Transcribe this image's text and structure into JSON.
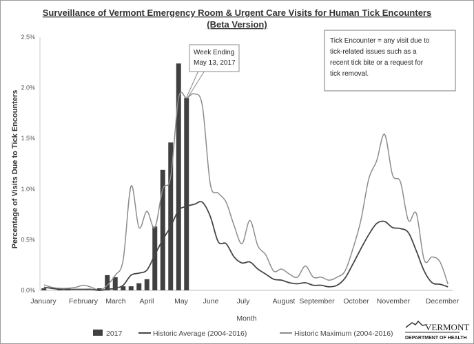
{
  "chart_data": {
    "type": "bar+line",
    "title": "Surveillance of Vermont Emergency Room & Urgent Care Visits for Human Tick Encounters",
    "subtitle": "(Beta Version)",
    "xlabel": "Month",
    "ylabel": "Percentage of Visits Due to Tick Encounters",
    "ylim": [
      0,
      2.5
    ],
    "yticks": [
      "0.0%",
      "0.5%",
      "1.0%",
      "1.5%",
      "2.0%",
      "2.5%"
    ],
    "xticks": [
      "January",
      "February",
      "March",
      "April",
      "May",
      "June",
      "July",
      "August",
      "September",
      "October",
      "November",
      "December"
    ],
    "x_unit": "week of year (1-52)",
    "grid": false,
    "legend_placement": "bottom",
    "series": [
      {
        "name": "2017",
        "kind": "bar",
        "color": "#404040",
        "values": [
          0.02,
          0,
          0.02,
          0.02,
          0,
          0,
          0,
          0.02,
          0.15,
          0.13,
          0.04,
          0.04,
          0.07,
          0.11,
          0.63,
          1.19,
          1.46,
          2.24,
          1.9
        ]
      },
      {
        "name": "Historic Average (2004-2016)",
        "kind": "line",
        "color": "#444444",
        "values": [
          0.03,
          0.02,
          0.01,
          0.01,
          0.01,
          0.01,
          0.01,
          0.0,
          0.01,
          0.02,
          0.05,
          0.15,
          0.17,
          0.2,
          0.35,
          0.5,
          0.63,
          0.79,
          0.83,
          0.85,
          0.87,
          0.73,
          0.48,
          0.46,
          0.33,
          0.27,
          0.28,
          0.21,
          0.16,
          0.11,
          0.1,
          0.075,
          0.065,
          0.075,
          0.05,
          0.05,
          0.035,
          0.05,
          0.12,
          0.26,
          0.41,
          0.55,
          0.66,
          0.68,
          0.62,
          0.61,
          0.57,
          0.39,
          0.19,
          0.075,
          0.06,
          0.035
        ]
      },
      {
        "name": "Historic Maximum (2004-2016)",
        "kind": "line",
        "color": "#8c8c8c",
        "values": [
          0.055,
          0.03,
          0.02,
          0.02,
          0.03,
          0.05,
          0.03,
          0.0,
          0.05,
          0.15,
          0.3,
          1.03,
          0.62,
          0.78,
          0.62,
          1.0,
          1.12,
          1.9,
          1.9,
          1.94,
          1.82,
          1.05,
          0.96,
          0.87,
          0.64,
          0.46,
          0.69,
          0.44,
          0.35,
          0.19,
          0.21,
          0.16,
          0.13,
          0.24,
          0.13,
          0.13,
          0.1,
          0.13,
          0.19,
          0.41,
          0.69,
          1.1,
          1.28,
          1.54,
          1.14,
          1.07,
          0.69,
          0.76,
          0.3,
          0.33,
          0.28,
          0.06
        ]
      }
    ],
    "annotations": {
      "callout": [
        "Week Ending",
        "May 13, 2017"
      ],
      "note": [
        "Tick Encounter = any visit due to",
        "tick-related issues such as a",
        "recent tick bite or a request for",
        "tick removal."
      ]
    }
  },
  "logo": {
    "name": "VERMONT",
    "sub": "DEPARTMENT OF HEALTH"
  }
}
